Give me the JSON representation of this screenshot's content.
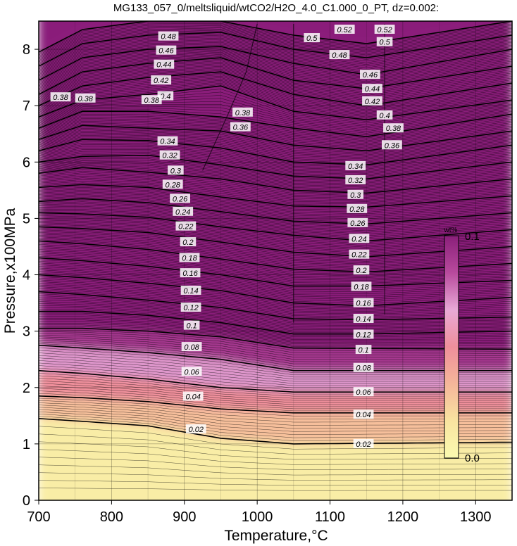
{
  "chart_data": {
    "type": "contour",
    "title": "MG133_057_0/meltsliquid/wtCO2/H2O_4.0_C1.000_0_PT, dz=0.002:",
    "xlabel": "Temperature,°C",
    "ylabel": "Pressure,x100MPa",
    "xlim": [
      700,
      1350
    ],
    "ylim": [
      0,
      8.5
    ],
    "x_ticks": [
      700,
      800,
      900,
      1000,
      1100,
      1200,
      1300
    ],
    "y_ticks": [
      0,
      1,
      2,
      3,
      4,
      5,
      6,
      7,
      8
    ],
    "grid": true,
    "contour_interval": 0.002,
    "major_interval": 0.02,
    "colorbar": {
      "label": "wt%",
      "min": 0.0,
      "max": 0.1,
      "min_label": "0.0",
      "max_label": "0.1",
      "colors": [
        "#fafab0",
        "#f9e4a0",
        "#f5b69a",
        "#ef8f9b",
        "#e8a9d6",
        "#b84a9d",
        "#8a1f7a"
      ]
    },
    "isolines": [
      {
        "label": "0.02",
        "points": [
          [
            700,
            1.45
          ],
          [
            760,
            1.4
          ],
          [
            850,
            1.32
          ],
          [
            950,
            1.1
          ],
          [
            1050,
            1.0
          ],
          [
            1350,
            1.03
          ]
        ]
      },
      {
        "label": "0.04",
        "points": [
          [
            700,
            1.85
          ],
          [
            760,
            1.82
          ],
          [
            850,
            1.75
          ],
          [
            950,
            1.62
          ],
          [
            1050,
            1.55
          ],
          [
            1350,
            1.55
          ]
        ]
      },
      {
        "label": "0.06",
        "points": [
          [
            700,
            2.3
          ],
          [
            760,
            2.25
          ],
          [
            850,
            2.15
          ],
          [
            950,
            2.0
          ],
          [
            1050,
            1.92
          ],
          [
            1350,
            1.92
          ]
        ]
      },
      {
        "label": "0.08",
        "points": [
          [
            700,
            2.75
          ],
          [
            760,
            2.7
          ],
          [
            850,
            2.62
          ],
          [
            950,
            2.5
          ],
          [
            1050,
            2.3
          ],
          [
            1350,
            2.3
          ]
        ]
      },
      {
        "label": "0.1",
        "points": [
          [
            700,
            3.05
          ],
          [
            760,
            3.05
          ],
          [
            850,
            3.0
          ],
          [
            950,
            2.9
          ],
          [
            1050,
            2.7
          ],
          [
            1350,
            2.68
          ]
        ]
      },
      {
        "label": "0.12",
        "points": [
          [
            700,
            3.35
          ],
          [
            760,
            3.35
          ],
          [
            850,
            3.28
          ],
          [
            950,
            3.15
          ],
          [
            1050,
            2.95
          ],
          [
            1150,
            2.95
          ],
          [
            1350,
            3.0
          ]
        ]
      },
      {
        "label": "0.14",
        "points": [
          [
            700,
            3.7
          ],
          [
            760,
            3.65
          ],
          [
            850,
            3.55
          ],
          [
            950,
            3.42
          ],
          [
            1050,
            3.22
          ],
          [
            1150,
            3.2
          ],
          [
            1350,
            3.25
          ]
        ]
      },
      {
        "label": "0.16",
        "points": [
          [
            700,
            4.0
          ],
          [
            760,
            3.95
          ],
          [
            850,
            3.85
          ],
          [
            950,
            3.72
          ],
          [
            1050,
            3.5
          ],
          [
            1150,
            3.45
          ],
          [
            1350,
            3.6
          ]
        ]
      },
      {
        "label": "0.18",
        "points": [
          [
            700,
            4.3
          ],
          [
            760,
            4.25
          ],
          [
            850,
            4.15
          ],
          [
            950,
            4.0
          ],
          [
            1050,
            3.8
          ],
          [
            1150,
            3.8
          ],
          [
            1350,
            3.9
          ]
        ]
      },
      {
        "label": "0.2",
        "points": [
          [
            700,
            4.6
          ],
          [
            760,
            4.55
          ],
          [
            850,
            4.45
          ],
          [
            950,
            4.28
          ],
          [
            1050,
            4.1
          ],
          [
            1150,
            4.05
          ],
          [
            1350,
            4.2
          ]
        ]
      },
      {
        "label": "0.22",
        "points": [
          [
            700,
            4.85
          ],
          [
            760,
            4.82
          ],
          [
            850,
            4.75
          ],
          [
            950,
            4.58
          ],
          [
            1050,
            4.4
          ],
          [
            1150,
            4.32
          ],
          [
            1350,
            4.5
          ]
        ]
      },
      {
        "label": "0.24",
        "points": [
          [
            700,
            5.1
          ],
          [
            760,
            5.08
          ],
          [
            850,
            5.02
          ],
          [
            950,
            4.85
          ],
          [
            1050,
            4.7
          ],
          [
            1150,
            4.6
          ],
          [
            1350,
            4.8
          ]
        ]
      },
      {
        "label": "0.26",
        "points": [
          [
            700,
            5.3
          ],
          [
            760,
            5.35
          ],
          [
            850,
            5.28
          ],
          [
            950,
            5.12
          ],
          [
            1050,
            4.95
          ],
          [
            1150,
            4.9
          ],
          [
            1350,
            5.1
          ]
        ]
      },
      {
        "label": "0.28",
        "points": [
          [
            700,
            5.55
          ],
          [
            760,
            5.6
          ],
          [
            850,
            5.55
          ],
          [
            950,
            5.38
          ],
          [
            1050,
            5.22
          ],
          [
            1150,
            5.2
          ],
          [
            1350,
            5.4
          ]
        ]
      },
      {
        "label": "0.3",
        "points": [
          [
            700,
            5.8
          ],
          [
            760,
            5.9
          ],
          [
            850,
            5.82
          ],
          [
            950,
            5.7
          ],
          [
            1050,
            5.5
          ],
          [
            1150,
            5.45
          ],
          [
            1350,
            5.7
          ]
        ]
      },
      {
        "label": "0.32",
        "points": [
          [
            700,
            6.0
          ],
          [
            760,
            6.1
          ],
          [
            850,
            6.12
          ],
          [
            950,
            5.95
          ],
          [
            1050,
            5.75
          ],
          [
            1150,
            5.7
          ],
          [
            1350,
            6.0
          ]
        ]
      },
      {
        "label": "0.34",
        "points": [
          [
            700,
            6.2
          ],
          [
            760,
            6.4
          ],
          [
            850,
            6.38
          ],
          [
            950,
            6.25
          ],
          [
            1050,
            6.0
          ],
          [
            1150,
            5.95
          ],
          [
            1350,
            6.3
          ]
        ]
      },
      {
        "label": "0.36",
        "points": [
          [
            700,
            6.4
          ],
          [
            760,
            6.65
          ],
          [
            850,
            6.6
          ],
          [
            950,
            6.55
          ],
          [
            1050,
            6.3
          ],
          [
            1150,
            6.2
          ],
          [
            1350,
            6.55
          ]
        ]
      },
      {
        "label": "0.38",
        "points": [
          [
            700,
            6.6
          ],
          [
            760,
            6.9
          ],
          [
            850,
            6.9
          ],
          [
            950,
            6.8
          ],
          [
            1050,
            6.6
          ],
          [
            1150,
            6.45
          ],
          [
            1350,
            6.85
          ]
        ]
      },
      {
        "label": "0.4",
        "points": [
          [
            700,
            6.8
          ],
          [
            760,
            7.1
          ],
          [
            850,
            7.2
          ],
          [
            950,
            7.35
          ],
          [
            1050,
            6.9
          ],
          [
            1150,
            6.75
          ],
          [
            1350,
            7.1
          ]
        ]
      },
      {
        "label": "0.42",
        "points": [
          [
            700,
            7.0
          ],
          [
            760,
            7.35
          ],
          [
            850,
            7.5
          ],
          [
            950,
            7.6
          ],
          [
            1050,
            7.2
          ],
          [
            1150,
            7.0
          ],
          [
            1350,
            7.4
          ]
        ]
      },
      {
        "label": "0.44",
        "points": [
          [
            700,
            7.2
          ],
          [
            760,
            7.6
          ],
          [
            850,
            7.75
          ],
          [
            950,
            7.85
          ],
          [
            1050,
            7.45
          ],
          [
            1150,
            7.3
          ],
          [
            1350,
            7.7
          ]
        ]
      },
      {
        "label": "0.46",
        "points": [
          [
            700,
            7.45
          ],
          [
            760,
            7.85
          ],
          [
            850,
            8.0
          ],
          [
            950,
            8.05
          ],
          [
            1050,
            7.75
          ],
          [
            1150,
            7.55
          ],
          [
            1350,
            8.0
          ]
        ]
      },
      {
        "label": "0.48",
        "points": [
          [
            700,
            7.7
          ],
          [
            760,
            8.1
          ],
          [
            850,
            8.25
          ],
          [
            950,
            8.3
          ],
          [
            1050,
            8.0
          ],
          [
            1150,
            7.85
          ],
          [
            1350,
            8.25
          ]
        ]
      },
      {
        "label": "0.5",
        "points": [
          [
            700,
            7.95
          ],
          [
            760,
            8.35
          ],
          [
            850,
            8.5
          ],
          [
            950,
            8.5
          ],
          [
            1050,
            8.25
          ],
          [
            1150,
            8.1
          ],
          [
            1350,
            8.5
          ]
        ]
      }
    ],
    "contour_labels": [
      {
        "text": "0.48",
        "x": 878,
        "y": 8.23
      },
      {
        "text": "0.46",
        "x": 875,
        "y": 7.98
      },
      {
        "text": "0.44",
        "x": 872,
        "y": 7.73
      },
      {
        "text": "0.42",
        "x": 868,
        "y": 7.45
      },
      {
        "text": "0.4",
        "x": 874,
        "y": 7.17
      },
      {
        "text": "0.38",
        "x": 730,
        "y": 7.15
      },
      {
        "text": "0.38",
        "x": 764,
        "y": 7.13
      },
      {
        "text": "0.38",
        "x": 855,
        "y": 7.1
      },
      {
        "text": "0.38",
        "x": 980,
        "y": 6.88
      },
      {
        "text": "0.36",
        "x": 977,
        "y": 6.62
      },
      {
        "text": "0.34",
        "x": 877,
        "y": 6.37
      },
      {
        "text": "0.32",
        "x": 880,
        "y": 6.12
      },
      {
        "text": "0.3",
        "x": 888,
        "y": 5.85
      },
      {
        "text": "0.28",
        "x": 884,
        "y": 5.6
      },
      {
        "text": "0.26",
        "x": 894,
        "y": 5.35
      },
      {
        "text": "0.24",
        "x": 898,
        "y": 5.12
      },
      {
        "text": "0.22",
        "x": 902,
        "y": 4.86
      },
      {
        "text": "0.2",
        "x": 905,
        "y": 4.58
      },
      {
        "text": "0.18",
        "x": 907,
        "y": 4.3
      },
      {
        "text": "0.16",
        "x": 908,
        "y": 4.03
      },
      {
        "text": "0.14",
        "x": 909,
        "y": 3.72
      },
      {
        "text": "0.12",
        "x": 909,
        "y": 3.42
      },
      {
        "text": "0.1",
        "x": 910,
        "y": 3.1
      },
      {
        "text": "0.08",
        "x": 910,
        "y": 2.72
      },
      {
        "text": "0.06",
        "x": 910,
        "y": 2.28
      },
      {
        "text": "0.04",
        "x": 912,
        "y": 1.84
      },
      {
        "text": "0.02",
        "x": 916,
        "y": 1.26
      },
      {
        "text": "0.52",
        "x": 1120,
        "y": 8.35
      },
      {
        "text": "0.52",
        "x": 1175,
        "y": 8.35
      },
      {
        "text": "0.5",
        "x": 1075,
        "y": 8.2
      },
      {
        "text": "0.5",
        "x": 1175,
        "y": 8.13
      },
      {
        "text": "0.48",
        "x": 1113,
        "y": 7.9
      },
      {
        "text": "0.46",
        "x": 1155,
        "y": 7.55
      },
      {
        "text": "0.44",
        "x": 1158,
        "y": 7.3
      },
      {
        "text": "0.42",
        "x": 1158,
        "y": 7.08
      },
      {
        "text": "0.4",
        "x": 1175,
        "y": 6.83
      },
      {
        "text": "0.38",
        "x": 1187,
        "y": 6.6
      },
      {
        "text": "0.36",
        "x": 1185,
        "y": 6.3
      },
      {
        "text": "0.34",
        "x": 1135,
        "y": 5.93
      },
      {
        "text": "0.32",
        "x": 1135,
        "y": 5.68
      },
      {
        "text": "0.3",
        "x": 1135,
        "y": 5.42
      },
      {
        "text": "0.28",
        "x": 1137,
        "y": 5.17
      },
      {
        "text": "0.26",
        "x": 1138,
        "y": 4.92
      },
      {
        "text": "0.24",
        "x": 1140,
        "y": 4.64
      },
      {
        "text": "0.22",
        "x": 1140,
        "y": 4.36
      },
      {
        "text": "0.2",
        "x": 1143,
        "y": 4.08
      },
      {
        "text": "0.18",
        "x": 1143,
        "y": 3.79
      },
      {
        "text": "0.16",
        "x": 1146,
        "y": 3.5
      },
      {
        "text": "0.14",
        "x": 1146,
        "y": 3.22
      },
      {
        "text": "0.12",
        "x": 1146,
        "y": 2.94
      },
      {
        "text": "0.1",
        "x": 1146,
        "y": 2.67
      },
      {
        "text": "0.08",
        "x": 1146,
        "y": 2.35
      },
      {
        "text": "0.06",
        "x": 1146,
        "y": 1.92
      },
      {
        "text": "0.04",
        "x": 1146,
        "y": 1.52
      },
      {
        "text": "0.02",
        "x": 1146,
        "y": 1.0
      }
    ],
    "phase_boundaries": [
      [
        [
          925,
          5.85
        ],
        [
          960,
          6.85
        ],
        [
          985,
          7.6
        ],
        [
          1000,
          8.45
        ]
      ],
      [
        [
          1050,
          8.45
        ],
        [
          1050,
          3.15
        ]
      ],
      [
        [
          1175,
          8.45
        ],
        [
          1175,
          3.3
        ]
      ]
    ]
  }
}
